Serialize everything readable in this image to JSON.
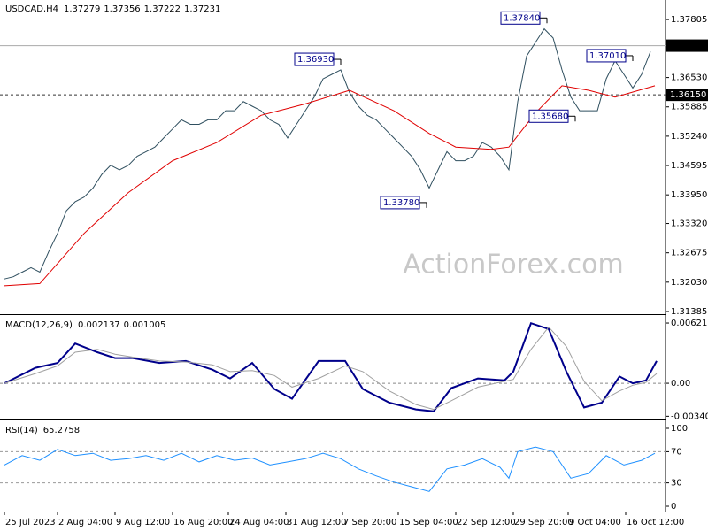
{
  "chart_data": [
    {
      "type": "line",
      "title": "USDCAD,H4",
      "header_values": [
        1.37279,
        1.37356,
        1.37222,
        1.37231
      ],
      "watermark": "ActionForex.com",
      "xlim": [
        -0.5,
        74.7
      ],
      "ylim": [
        1.31326,
        1.38235
      ],
      "yticks": [
        1.37805,
        {
          "value": 1.3653,
          "label": "1.36530"
        },
        1.35885,
        {
          "value": 1.3524,
          "label": "1.35240"
        },
        1.34595,
        {
          "value": 1.3395,
          "label": "1.33950"
        },
        {
          "value": 1.3332,
          "label": "1.33320"
        },
        1.32675,
        {
          "value": 1.3203,
          "label": "1.32030"
        },
        1.31385
      ],
      "price_lines": [
        {
          "value": 1.37231,
          "style": "solid"
        },
        {
          "value": 1.3615,
          "label": "1.36150",
          "style": "dashed"
        }
      ],
      "annotations": [
        {
          "x": 61.3,
          "value": 1.3784,
          "label": "1.37840"
        },
        {
          "x": 38,
          "value": 1.3693,
          "label": "1.36930"
        },
        {
          "x": 47.7,
          "value": 1.3378,
          "label": "1.33780"
        },
        {
          "x": 64.5,
          "value": 1.3568,
          "label": "1.35680"
        },
        {
          "x": 71,
          "value": 1.3701,
          "label": "1.37010"
        }
      ],
      "series": [
        {
          "color": "#2f4f5f",
          "values": [
            1.321,
            1.3215,
            1.3225,
            1.3235,
            1.3225,
            1.327,
            1.331,
            1.336,
            1.338,
            1.339,
            1.341,
            1.344,
            1.346,
            1.345,
            1.346,
            1.348,
            1.349,
            1.35,
            1.352,
            1.354,
            1.356,
            1.355,
            1.355,
            1.356,
            1.356,
            1.358,
            1.358,
            1.36,
            1.359,
            1.358,
            1.356,
            1.355,
            1.352,
            1.355,
            1.358,
            1.361,
            1.365,
            1.366,
            1.367,
            1.362,
            1.359,
            1.357,
            1.356,
            1.354,
            1.352,
            1.35,
            1.348,
            1.345,
            1.341,
            1.345,
            1.349,
            1.347,
            1.347,
            1.348,
            1.351,
            1.35,
            1.348,
            1.345,
            1.36,
            1.37,
            1.373,
            1.376,
            1.374,
            1.367,
            1.361,
            1.358,
            1.358,
            1.358,
            1.365,
            1.369,
            1.366,
            1.363,
            1.366,
            1.371
          ]
        },
        {
          "color": "#e00000",
          "x": [
            0,
            4,
            9,
            14,
            19,
            24,
            29,
            34,
            39,
            44,
            48,
            51,
            55,
            57,
            60,
            63,
            66,
            69,
            73.5
          ],
          "values": [
            1.3195,
            1.32,
            1.331,
            1.34,
            1.347,
            1.351,
            1.357,
            1.3595,
            1.3625,
            1.358,
            1.353,
            1.35,
            1.3495,
            1.35,
            1.3575,
            1.3635,
            1.3625,
            1.361,
            1.3635
          ]
        }
      ]
    },
    {
      "type": "line",
      "title": "MACD(12,26,9)",
      "header_values": [
        0.002137,
        0.001005
      ],
      "xlim": [
        -0.5,
        74.7
      ],
      "ylim": [
        -0.00374,
        0.00695
      ],
      "yticks": [
        0.006216,
        {
          "value": 0,
          "label": "0.00"
        },
        -0.003407
      ],
      "zero_line": 0,
      "series": [
        {
          "color": "#00008b",
          "x": [
            0,
            3.5,
            6,
            8,
            10.5,
            12.5,
            14.5,
            17.5,
            20.5,
            23.5,
            25.5,
            28,
            30.5,
            32.5,
            35.5,
            38.5,
            40.5,
            43.5,
            46.5,
            48.5,
            50.5,
            53.5,
            56.5,
            57.5,
            59.5,
            61.5,
            63.5,
            65.5,
            67.5,
            69.5,
            71,
            72.5,
            73.7
          ],
          "values": [
            0,
            0.0016,
            0.0021,
            0.0041,
            0.0032,
            0.0026,
            0.0026,
            0.0021,
            0.0023,
            0.0014,
            0.0005,
            0.0021,
            -0.0006,
            -0.0016,
            0.0023,
            0.0023,
            -0.0006,
            -0.002,
            -0.0027,
            -0.0029,
            -0.0005,
            0.0005,
            0.0003,
            0.0012,
            0.0062,
            0.0056,
            0.0012,
            -0.0025,
            -0.002,
            0.0007,
            0,
            0.0003,
            0.0023
          ]
        },
        {
          "color": "#a0a0a0",
          "x": [
            0,
            3.5,
            6,
            8,
            10.5,
            12.5,
            14.5,
            17.5,
            20.5,
            23.5,
            25.5,
            28,
            30.5,
            32.5,
            35.5,
            38.5,
            40.5,
            43.5,
            46.5,
            48.5,
            50.5,
            53.5,
            56.5,
            57.5,
            59.5,
            61.5,
            63.5,
            65.5,
            67.5,
            69.5,
            71,
            72.5,
            73.7
          ],
          "values": [
            0,
            0.001,
            0.0018,
            0.0032,
            0.0035,
            0.003,
            0.0027,
            0.0023,
            0.0022,
            0.0019,
            0.0012,
            0.0013,
            0.0008,
            -0.0004,
            0.0005,
            0.0018,
            0.0012,
            -0.0008,
            -0.0022,
            -0.0027,
            -0.0018,
            -0.0004,
            0.0002,
            0.0004,
            0.0035,
            0.0058,
            0.0038,
            0.0002,
            -0.0018,
            -0.0008,
            -0.0002,
            0.0001,
            0.001
          ]
        }
      ]
    },
    {
      "type": "line",
      "title": "RSI(14)",
      "header_values": [
        65.2758
      ],
      "xlim": [
        -0.5,
        74.7
      ],
      "ylim": [
        -6.8,
        109.1
      ],
      "yticks": [
        100,
        70,
        30,
        0
      ],
      "levels": [
        70,
        30
      ],
      "xticks": [
        {
          "value": 0,
          "label": "25 Jul 2023"
        },
        {
          "value": 6,
          "label": "2 Aug 04:00"
        },
        {
          "value": 12.5,
          "label": "9 Aug 12:00"
        },
        {
          "value": 19,
          "label": "16 Aug 20:00"
        },
        {
          "value": 25.3,
          "label": "24 Aug 04:00"
        },
        {
          "value": 31.8,
          "label": "31 Aug 12:00"
        },
        {
          "value": 38.2,
          "label": "7 Sep 20:00"
        },
        {
          "value": 44.5,
          "label": "15 Sep 04:00"
        },
        {
          "value": 51,
          "label": "22 Sep 12:00"
        },
        {
          "value": 57.5,
          "label": "29 Sep 20:00"
        },
        {
          "value": 63.7,
          "label": "9 Oct 04:00"
        },
        {
          "value": 70.2,
          "label": "16 Oct 12:00"
        }
      ],
      "series": [
        {
          "color": "#1e90ff",
          "x": [
            0,
            2,
            4,
            6,
            8,
            10,
            12,
            14,
            16,
            18,
            20,
            22,
            24,
            26,
            28,
            30,
            32,
            34,
            36,
            38,
            40,
            42,
            44,
            46,
            48,
            50,
            52,
            54,
            56,
            57,
            58,
            60,
            62,
            64,
            66,
            68,
            70,
            72,
            73.5
          ],
          "values": [
            53,
            65,
            59,
            73,
            65,
            68,
            59,
            61,
            65,
            59,
            68,
            57,
            65,
            59,
            62,
            53,
            57,
            61,
            68,
            61,
            48,
            39,
            31,
            25,
            19,
            48,
            53,
            61,
            50,
            36,
            70,
            76,
            70,
            36,
            42,
            65,
            53,
            59,
            68
          ]
        }
      ]
    }
  ]
}
